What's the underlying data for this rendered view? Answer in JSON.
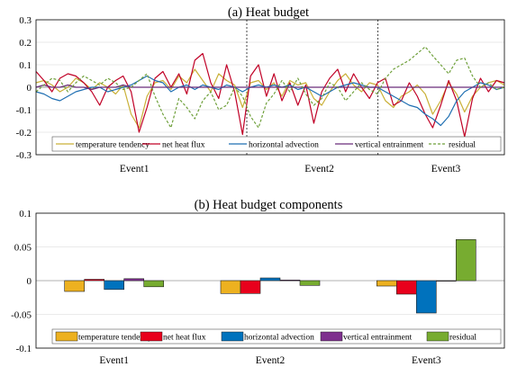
{
  "colors": {
    "temperature_tendency": "#EDB120",
    "net_heat_flux": "#E8001C",
    "horizontal_advection": "#0072BD",
    "vertical_entrainment": "#7E2F8E",
    "residual": "#77AC30",
    "line_temperature_tendency": "#C9B037",
    "line_net_heat_flux": "#C00026",
    "line_horizontal_advection": "#1F6FB2",
    "line_vertical_entrainment": "#6A2C7A",
    "line_residual": "#6FA03B"
  },
  "chart_data": [
    {
      "type": "line",
      "title": "(a) Heat budget",
      "xlabel": "",
      "ylabel": "",
      "xlim": [
        0,
        1
      ],
      "ylim": [
        -0.3,
        0.3
      ],
      "yticks": [
        "0.3",
        "0.2",
        "0.1",
        "0",
        "-0.1",
        "-0.2",
        "-0.3"
      ],
      "ytick_values": [
        0.3,
        0.2,
        0.1,
        0,
        -0.1,
        -0.2,
        -0.3
      ],
      "grid": true,
      "event_labels": [
        {
          "label": "Event1",
          "x": 0.21
        },
        {
          "label": "Event2",
          "x": 0.605
        },
        {
          "label": "Event3",
          "x": 0.875
        }
      ],
      "dividers_x": [
        0.45,
        0.73
      ],
      "legend": [
        "temperature tendency",
        "net heat flux",
        "horizontal advection",
        "vertical entrainment",
        "residual"
      ],
      "legend_position": "bottom",
      "x": [
        0.0,
        0.017,
        0.034,
        0.051,
        0.068,
        0.085,
        0.102,
        0.119,
        0.136,
        0.153,
        0.17,
        0.186,
        0.203,
        0.22,
        0.237,
        0.254,
        0.271,
        0.288,
        0.305,
        0.322,
        0.339,
        0.356,
        0.373,
        0.39,
        0.407,
        0.424,
        0.441,
        0.458,
        0.475,
        0.492,
        0.508,
        0.525,
        0.542,
        0.559,
        0.576,
        0.593,
        0.61,
        0.627,
        0.644,
        0.661,
        0.678,
        0.695,
        0.712,
        0.729,
        0.746,
        0.763,
        0.78,
        0.797,
        0.814,
        0.831,
        0.847,
        0.864,
        0.881,
        0.898,
        0.915,
        0.932,
        0.949,
        0.966,
        0.983,
        1.0
      ],
      "series": [
        {
          "name": "temperature tendency",
          "style": "solid",
          "values": [
            0.02,
            0.03,
            0.01,
            -0.02,
            0.0,
            0.04,
            0.02,
            -0.01,
            0.02,
            0.0,
            -0.03,
            0.01,
            -0.12,
            -0.18,
            -0.04,
            0.02,
            0.03,
            -0.01,
            0.05,
            0.02,
            0.08,
            0.03,
            -0.02,
            0.06,
            0.03,
            0.01,
            -0.09,
            0.02,
            0.03,
            -0.01,
            0.02,
            -0.04,
            0.03,
            0.01,
            0.02,
            -0.05,
            -0.08,
            -0.02,
            0.03,
            0.06,
            0.01,
            -0.02,
            0.02,
            0.01,
            -0.06,
            -0.09,
            -0.04,
            -0.02,
            0.01,
            -0.03,
            -0.12,
            -0.06,
            0.02,
            -0.03,
            -0.11,
            -0.04,
            0.0,
            0.02,
            0.03,
            0.01
          ]
        },
        {
          "name": "net heat flux",
          "style": "solid",
          "values": [
            0.07,
            0.03,
            -0.02,
            0.04,
            0.06,
            0.05,
            0.02,
            -0.02,
            -0.08,
            0.0,
            0.03,
            0.05,
            -0.02,
            -0.2,
            -0.09,
            0.04,
            0.07,
            0.0,
            0.06,
            -0.03,
            0.12,
            0.15,
            0.02,
            -0.05,
            0.1,
            -0.02,
            -0.21,
            0.05,
            0.1,
            -0.04,
            0.06,
            -0.06,
            0.02,
            -0.08,
            0.01,
            -0.16,
            -0.02,
            0.04,
            0.08,
            -0.02,
            0.06,
            0.0,
            -0.05,
            0.02,
            0.04,
            -0.08,
            -0.06,
            0.02,
            -0.04,
            -0.12,
            -0.18,
            -0.08,
            0.03,
            -0.06,
            -0.22,
            -0.05,
            0.04,
            -0.02,
            0.03,
            0.02
          ]
        },
        {
          "name": "horizontal advection",
          "style": "solid",
          "values": [
            -0.02,
            -0.03,
            -0.05,
            -0.06,
            -0.04,
            -0.02,
            -0.01,
            0.0,
            0.0,
            -0.02,
            -0.01,
            0.0,
            0.01,
            0.03,
            0.05,
            0.03,
            0.02,
            -0.02,
            0.0,
            0.01,
            -0.01,
            0.01,
            0.0,
            -0.01,
            0.01,
            0.0,
            -0.02,
            0.0,
            0.01,
            0.0,
            0.01,
            0.0,
            0.01,
            -0.01,
            0.0,
            -0.02,
            -0.04,
            -0.02,
            0.0,
            0.01,
            0.02,
            0.01,
            0.0,
            0.0,
            -0.02,
            -0.04,
            -0.06,
            -0.08,
            -0.09,
            -0.12,
            -0.14,
            -0.17,
            -0.13,
            -0.06,
            -0.02,
            0.0,
            0.02,
            0.01,
            -0.01,
            0.0
          ]
        },
        {
          "name": "vertical entrainment",
          "style": "solid",
          "values": [
            0.0,
            0.01,
            0.0,
            0.0,
            0.01,
            0.0,
            0.0,
            -0.01,
            0.0,
            0.0,
            0.0,
            0.01,
            0.0,
            0.0,
            0.0,
            0.0,
            0.0,
            0.0,
            0.0,
            0.0,
            0.0,
            0.0,
            0.0,
            0.0,
            0.0,
            0.0,
            0.0,
            0.0,
            0.0,
            0.0,
            0.0,
            0.0,
            0.0,
            0.0,
            0.0,
            0.0,
            0.0,
            0.0,
            0.0,
            0.0,
            0.0,
            0.0,
            0.0,
            0.0,
            0.0,
            0.0,
            0.0,
            0.0,
            0.0,
            0.0,
            0.0,
            0.0,
            0.0,
            0.0,
            0.0,
            0.0,
            0.0,
            0.0,
            0.0,
            0.0
          ]
        },
        {
          "name": "residual",
          "style": "dashed",
          "values": [
            -0.02,
            0.01,
            0.04,
            0.03,
            -0.02,
            0.02,
            0.05,
            0.03,
            0.01,
            0.04,
            0.02,
            -0.01,
            0.0,
            0.03,
            0.06,
            -0.04,
            -0.12,
            -0.18,
            -0.05,
            -0.09,
            -0.14,
            -0.06,
            -0.02,
            -0.1,
            -0.08,
            0.0,
            -0.04,
            -0.13,
            -0.18,
            -0.07,
            -0.03,
            0.03,
            -0.02,
            0.04,
            -0.03,
            -0.08,
            -0.05,
            0.02,
            0.0,
            -0.06,
            -0.02,
            0.02,
            -0.01,
            -0.03,
            0.04,
            0.08,
            0.1,
            0.12,
            0.15,
            0.18,
            0.14,
            0.1,
            0.06,
            0.12,
            0.13,
            0.05,
            0.0,
            0.02,
            -0.01,
            0.0
          ]
        }
      ]
    },
    {
      "type": "bar",
      "title": "(b) Heat budget components",
      "xlabel": "",
      "ylabel": "",
      "categories": [
        "Event1",
        "Event2",
        "Event3"
      ],
      "ylim": [
        -0.1,
        0.1
      ],
      "yticks": [
        "0.1",
        "0.05",
        "0",
        "-0.05",
        "-0.1"
      ],
      "ytick_values": [
        0.1,
        0.05,
        0,
        -0.05,
        -0.1
      ],
      "grid": true,
      "legend_position": "bottom",
      "series": [
        {
          "name": "temperature tendency",
          "values": [
            -0.016,
            -0.019,
            -0.008
          ]
        },
        {
          "name": "net heat flux",
          "values": [
            0.002,
            -0.019,
            -0.02
          ]
        },
        {
          "name": "horizontal advection",
          "values": [
            -0.013,
            0.004,
            -0.048
          ]
        },
        {
          "name": "vertical entrainment",
          "values": [
            0.003,
            0.001,
            0.0
          ]
        },
        {
          "name": "residual",
          "values": [
            -0.009,
            -0.007,
            0.061
          ]
        }
      ]
    }
  ]
}
